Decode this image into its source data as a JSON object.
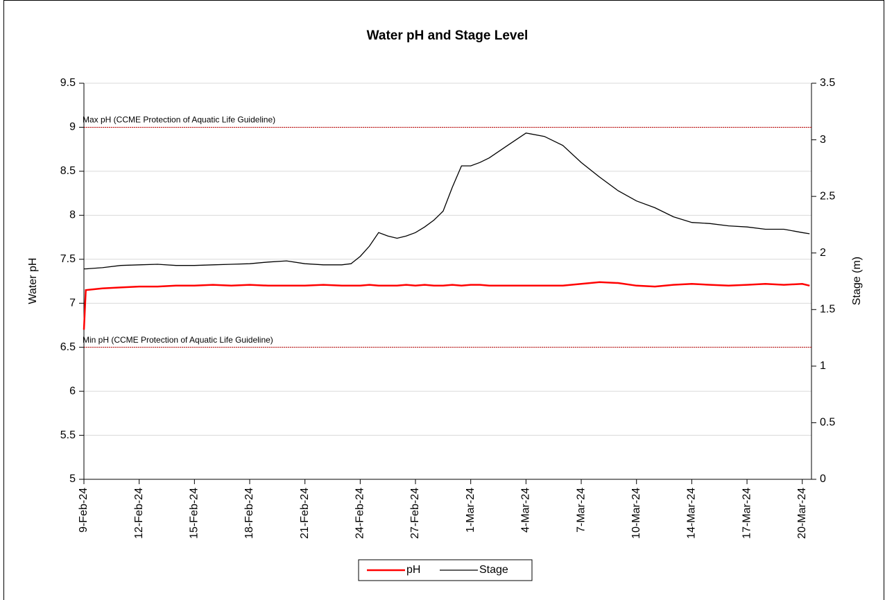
{
  "chart_data": {
    "type": "line",
    "title": "Water pH and Stage Level",
    "y_label": "Water pH",
    "y2_label": "Stage (m)",
    "x": [
      0,
      0.1,
      1,
      2,
      3,
      4,
      5,
      6,
      7,
      8,
      9,
      10,
      11,
      12,
      13,
      14,
      14.5,
      15,
      15.5,
      16,
      16.5,
      17,
      17.5,
      18,
      18.5,
      19,
      19.5,
      20,
      20.5,
      21,
      21.5,
      22,
      23,
      24,
      25,
      26,
      27,
      28,
      29,
      30,
      31,
      32,
      33,
      34,
      35,
      36,
      37,
      38,
      39,
      39.4
    ],
    "xlim": [
      0,
      39.5
    ],
    "xticks": [
      {
        "value": 0,
        "label": "9-Feb-24"
      },
      {
        "value": 3,
        "label": "12-Feb-24"
      },
      {
        "value": 6,
        "label": "15-Feb-24"
      },
      {
        "value": 9,
        "label": "18-Feb-24"
      },
      {
        "value": 12,
        "label": "21-Feb-24"
      },
      {
        "value": 15,
        "label": "24-Feb-24"
      },
      {
        "value": 18,
        "label": "27-Feb-24"
      },
      {
        "value": 21,
        "label": "1-Mar-24"
      },
      {
        "value": 24,
        "label": "4-Mar-24"
      },
      {
        "value": 27,
        "label": "7-Mar-24"
      },
      {
        "value": 30,
        "label": "10-Mar-24"
      },
      {
        "value": 33,
        "label": "14-Mar-24"
      },
      {
        "value": 36,
        "label": "17-Mar-24"
      },
      {
        "value": 39,
        "label": "20-Mar-24"
      }
    ],
    "ylim": [
      5,
      9.5
    ],
    "yticks": [
      5,
      5.5,
      6,
      6.5,
      7,
      7.5,
      8,
      8.5,
      9,
      9.5
    ],
    "y2lim": [
      0,
      3.5
    ],
    "y2ticks": [
      0,
      0.5,
      1,
      1.5,
      2,
      2.5,
      3,
      3.5
    ],
    "grid": true,
    "legend": "bottom",
    "series": [
      {
        "name": "pH",
        "color": "#ff0000",
        "values": [
          6.7,
          7.15,
          7.17,
          7.18,
          7.19,
          7.19,
          7.2,
          7.2,
          7.21,
          7.2,
          7.21,
          7.2,
          7.2,
          7.2,
          7.21,
          7.2,
          7.2,
          7.2,
          7.21,
          7.2,
          7.2,
          7.2,
          7.21,
          7.2,
          7.21,
          7.2,
          7.2,
          7.21,
          7.2,
          7.21,
          7.21,
          7.2,
          7.2,
          7.2,
          7.2,
          7.2,
          7.22,
          7.24,
          7.23,
          7.2,
          7.19,
          7.21,
          7.22,
          7.21,
          7.2,
          7.21,
          7.22,
          7.21,
          7.22,
          7.2
        ]
      },
      {
        "name": "Stage",
        "color": "#000000",
        "axis": "y2",
        "values": [
          1.86,
          1.86,
          1.87,
          1.89,
          1.895,
          1.9,
          1.89,
          1.89,
          1.895,
          1.9,
          1.905,
          1.92,
          1.93,
          1.905,
          1.895,
          1.895,
          1.905,
          1.97,
          2.06,
          2.18,
          2.15,
          2.13,
          2.15,
          2.18,
          2.23,
          2.29,
          2.37,
          2.58,
          2.77,
          2.77,
          2.8,
          2.84,
          2.95,
          3.06,
          3.03,
          2.95,
          2.8,
          2.67,
          2.55,
          2.46,
          2.4,
          2.32,
          2.27,
          2.26,
          2.24,
          2.23,
          2.21,
          2.21,
          2.18,
          2.17
        ]
      }
    ],
    "reference_lines": [
      {
        "value": 9,
        "label": "Max pH (CCME Protection of Aquatic Life Guideline)",
        "color": "#c00000"
      },
      {
        "value": 6.5,
        "label": "Min pH (CCME Protection of Aquatic Life Guideline)",
        "color": "#c00000"
      }
    ]
  }
}
